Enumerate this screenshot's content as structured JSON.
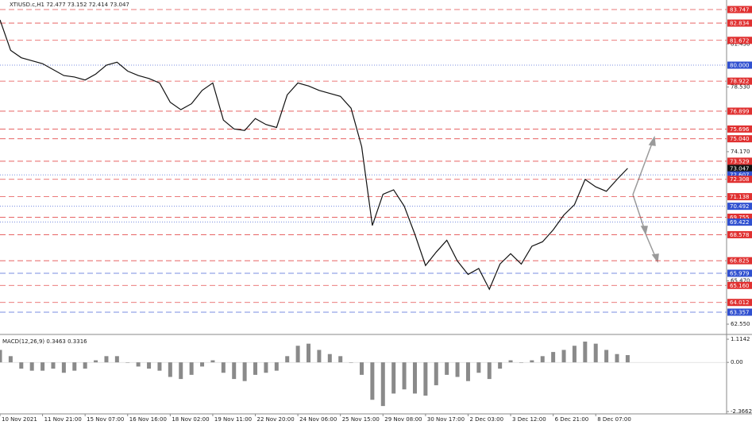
{
  "chart_data": [
    {
      "type": "line",
      "title": "XTIUSD.c,H1  72.477 73.152 72.414 73.047",
      "color": "#111111",
      "values": [
        83.05,
        81.0,
        80.5,
        80.3,
        80.1,
        79.7,
        79.3,
        79.2,
        79.0,
        79.4,
        80.0,
        80.2,
        79.6,
        79.3,
        79.1,
        78.8,
        77.5,
        77.0,
        77.4,
        78.3,
        78.8,
        76.3,
        75.7,
        75.6,
        76.4,
        76.0,
        75.8,
        78.0,
        78.8,
        78.6,
        78.3,
        78.1,
        77.9,
        77.1,
        74.5,
        69.2,
        71.3,
        71.6,
        70.5,
        68.6,
        66.5,
        67.4,
        68.2,
        66.8,
        65.9,
        66.3,
        64.9,
        66.6,
        67.3,
        66.6,
        67.8,
        68.1,
        68.9,
        69.9,
        70.6,
        72.3,
        71.8,
        71.5,
        72.3,
        73.05
      ],
      "xlim": [
        0,
        68.3
      ],
      "xticks": [
        {
          "value": 0,
          "label": "10 Nov 2021"
        },
        {
          "value": 4,
          "label": "11 Nov 21:00"
        },
        {
          "value": 8,
          "label": "15 Nov 07:00"
        },
        {
          "value": 12,
          "label": "16 Nov 16:00"
        },
        {
          "value": 16,
          "label": "18 Nov 02:00"
        },
        {
          "value": 20,
          "label": "19 Nov 11:00"
        },
        {
          "value": 24,
          "label": "22 Nov 20:00"
        },
        {
          "value": 28,
          "label": "24 Nov 06:00"
        },
        {
          "value": 32,
          "label": "25 Nov 15:00"
        },
        {
          "value": 36,
          "label": "29 Nov 08:00"
        },
        {
          "value": 40,
          "label": "30 Nov 17:00"
        },
        {
          "value": 44,
          "label": "2 Dec 03:00"
        },
        {
          "value": 48,
          "label": "3 Dec 12:00"
        },
        {
          "value": 52,
          "label": "6 Dec 21:00"
        },
        {
          "value": 56,
          "label": "8 Dec 07:00"
        }
      ],
      "ylim": [
        61.91,
        84.39
      ],
      "yticks": [
        {
          "value": 81.43,
          "label": "81.430"
        },
        {
          "value": 78.53,
          "label": "78.530"
        },
        {
          "value": 74.17,
          "label": "74.170"
        },
        {
          "value": 65.47,
          "label": "65.470"
        },
        {
          "value": 62.55,
          "label": "62.550"
        }
      ],
      "levels": [
        {
          "value": 83.747,
          "label": "83.747",
          "color": "#e03030",
          "style": "dash"
        },
        {
          "value": 82.834,
          "label": "82.834",
          "color": "#e03030",
          "style": "dash"
        },
        {
          "value": 81.672,
          "label": "81.672",
          "color": "#e03030",
          "style": "dash"
        },
        {
          "value": 80.0,
          "label": "80.000",
          "color": "#3050d0",
          "style": "dot"
        },
        {
          "value": 78.922,
          "label": "78.922",
          "color": "#e03030",
          "style": "dash"
        },
        {
          "value": 76.899,
          "label": "76.899",
          "color": "#e03030",
          "style": "dash"
        },
        {
          "value": 75.696,
          "label": "75.696",
          "color": "#e03030",
          "style": "dash"
        },
        {
          "value": 75.04,
          "label": "75.040",
          "color": "#e03030",
          "style": "dash"
        },
        {
          "value": 73.529,
          "label": "73.529",
          "color": "#e03030",
          "style": "dash"
        },
        {
          "value": 73.047,
          "label": "73.047",
          "color": "#111111",
          "style": "none"
        },
        {
          "value": 72.607,
          "label": "72.607",
          "color": "#3050d0",
          "style": "dot"
        },
        {
          "value": 72.308,
          "label": "72.308",
          "color": "#e03030",
          "style": "dash"
        },
        {
          "value": 71.138,
          "label": "71.138",
          "color": "#e03030",
          "style": "dash"
        },
        {
          "value": 70.492,
          "label": "70.492",
          "color": "#3050d0",
          "style": "dot"
        },
        {
          "value": 69.755,
          "label": "69.755",
          "color": "#e03030",
          "style": "dash"
        },
        {
          "value": 69.422,
          "label": "69.422",
          "color": "#3050d0",
          "style": "dot"
        },
        {
          "value": 68.578,
          "label": "68.578",
          "color": "#e03030",
          "style": "dash"
        },
        {
          "value": 66.825,
          "label": "66.825",
          "color": "#e03030",
          "style": "dash"
        },
        {
          "value": 65.979,
          "label": "65.979",
          "color": "#3050d0",
          "style": "dash"
        },
        {
          "value": 65.16,
          "label": "65.160",
          "color": "#e03030",
          "style": "dash"
        },
        {
          "value": 64.012,
          "label": "64.012",
          "color": "#e03030",
          "style": "dash"
        },
        {
          "value": 63.357,
          "label": "63.357",
          "color": "#3050d0",
          "style": "dash"
        }
      ]
    },
    {
      "type": "bar",
      "title": "MACD(12,26,9) 0.3463 0.3316",
      "color": "#8a8a8a",
      "values": [
        0.6,
        0.3,
        -0.3,
        -0.4,
        -0.4,
        -0.3,
        -0.5,
        -0.4,
        -0.3,
        0.1,
        0.3,
        0.3,
        0.0,
        -0.2,
        -0.3,
        -0.4,
        -0.7,
        -0.8,
        -0.6,
        -0.2,
        0.1,
        -0.5,
        -0.8,
        -0.9,
        -0.6,
        -0.5,
        -0.4,
        0.3,
        0.8,
        0.9,
        0.6,
        0.4,
        0.3,
        0.0,
        -0.6,
        -1.8,
        -2.1,
        -1.5,
        -1.3,
        -1.5,
        -1.6,
        -1.1,
        -0.6,
        -0.7,
        -0.9,
        -0.5,
        -0.8,
        -0.3,
        0.1,
        0.0,
        0.1,
        0.3,
        0.5,
        0.6,
        0.8,
        1.0,
        0.9,
        0.6,
        0.4,
        0.35
      ],
      "xlim": [
        0,
        68.3
      ],
      "ylim": [
        -2.44,
        1.23
      ],
      "yticks": [
        {
          "value": 1.1142,
          "label": "1.1142"
        },
        {
          "value": 0,
          "label": "0.00"
        },
        {
          "value": -2.3662,
          "label": "-2.3662"
        }
      ]
    }
  ]
}
